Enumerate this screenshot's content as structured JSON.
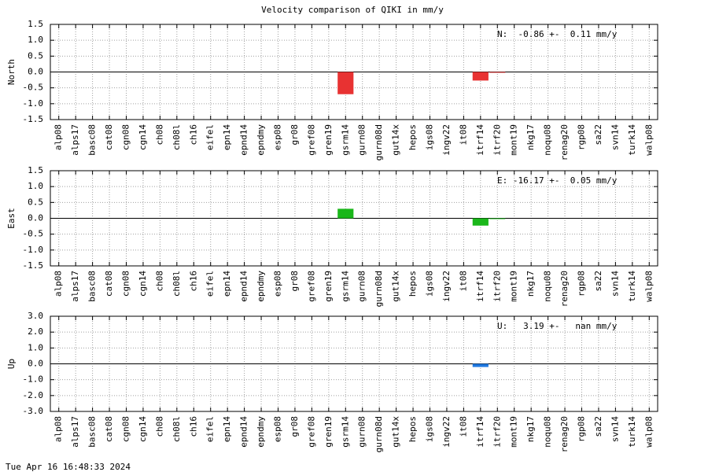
{
  "title": "Velocity comparison of QIKI in mm/y",
  "timestamp": "Tue Apr 16 16:48:33 2024",
  "chart_data": [
    {
      "type": "bar",
      "ylabel": "North",
      "annotation": "N:  -0.86 +-  0.11 mm/y",
      "categories": [
        "alp08",
        "alps17",
        "basc08",
        "cat08",
        "cgn08",
        "cgn14",
        "ch08",
        "ch08l",
        "ch16",
        "eifel",
        "epn14",
        "epnd14",
        "epndmy",
        "esp08",
        "gr08",
        "gref08",
        "gren19",
        "gsrm14",
        "gurn08",
        "gurn08d",
        "gut14x",
        "hepos",
        "igs08",
        "ingv22",
        "it08",
        "itrf14",
        "itrf20",
        "mont19",
        "nkg17",
        "noqu08",
        "renag20",
        "rgp08",
        "sa22",
        "svn14",
        "turk14",
        "walp08"
      ],
      "values": [
        null,
        null,
        null,
        null,
        null,
        null,
        null,
        null,
        null,
        null,
        null,
        null,
        null,
        null,
        null,
        null,
        null,
        -0.7,
        null,
        null,
        null,
        null,
        null,
        null,
        null,
        -0.27,
        -0.02,
        null,
        null,
        null,
        null,
        null,
        null,
        null,
        null,
        null
      ],
      "color": "#e83232",
      "ylim": [
        -1.5,
        1.5
      ],
      "yticks": [
        -1.5,
        {
          "value": -1,
          "label": "-1.0"
        },
        -0.5,
        {
          "value": 0,
          "label": "0.0"
        },
        0.5,
        {
          "value": 1,
          "label": "1.0"
        },
        1.5
      ],
      "grid": true
    },
    {
      "type": "bar",
      "ylabel": "East",
      "annotation": "E: -16.17 +-  0.05 mm/y",
      "categories": [
        "alp08",
        "alps17",
        "basc08",
        "cat08",
        "cgn08",
        "cgn14",
        "ch08",
        "ch08l",
        "ch16",
        "eifel",
        "epn14",
        "epnd14",
        "epndmy",
        "esp08",
        "gr08",
        "gref08",
        "gren19",
        "gsrm14",
        "gurn08",
        "gurn08d",
        "gut14x",
        "hepos",
        "igs08",
        "ingv22",
        "it08",
        "itrf14",
        "itrf20",
        "mont19",
        "nkg17",
        "noqu08",
        "renag20",
        "rgp08",
        "sa22",
        "svn14",
        "turk14",
        "walp08"
      ],
      "values": [
        null,
        null,
        null,
        null,
        null,
        null,
        null,
        null,
        null,
        null,
        null,
        null,
        null,
        null,
        null,
        null,
        null,
        0.3,
        null,
        null,
        null,
        null,
        null,
        null,
        null,
        -0.23,
        -0.02,
        null,
        null,
        null,
        null,
        null,
        null,
        null,
        null,
        null
      ],
      "color": "#1ab71a",
      "ylim": [
        -1.5,
        1.5
      ],
      "yticks": [
        -1.5,
        {
          "value": -1,
          "label": "-1.0"
        },
        -0.5,
        {
          "value": 0,
          "label": "0.0"
        },
        0.5,
        {
          "value": 1,
          "label": "1.0"
        },
        1.5
      ],
      "grid": true
    },
    {
      "type": "bar",
      "ylabel": "Up",
      "annotation": "U:   3.19 +-   nan mm/y",
      "categories": [
        "alp08",
        "alps17",
        "basc08",
        "cat08",
        "cgn08",
        "cgn14",
        "ch08",
        "ch08l",
        "ch16",
        "eifel",
        "epn14",
        "epnd14",
        "epndmy",
        "esp08",
        "gr08",
        "gref08",
        "gren19",
        "gsrm14",
        "gurn08",
        "gurn08d",
        "gut14x",
        "hepos",
        "igs08",
        "ingv22",
        "it08",
        "itrf14",
        "itrf20",
        "mont19",
        "nkg17",
        "noqu08",
        "renag20",
        "rgp08",
        "sa22",
        "svn14",
        "turk14",
        "walp08"
      ],
      "values": [
        null,
        null,
        null,
        null,
        null,
        null,
        null,
        null,
        null,
        null,
        null,
        null,
        null,
        null,
        null,
        null,
        null,
        null,
        null,
        null,
        null,
        null,
        null,
        null,
        null,
        -0.2,
        null,
        null,
        null,
        null,
        null,
        null,
        null,
        null,
        null,
        null
      ],
      "color": "#1f78e0",
      "ylim": [
        -3,
        3
      ],
      "yticks": [
        {
          "value": -3,
          "label": "-3.0"
        },
        {
          "value": -2,
          "label": "-2.0"
        },
        {
          "value": -1,
          "label": "-1.0"
        },
        {
          "value": 0,
          "label": "0.0"
        },
        {
          "value": 1,
          "label": "1.0"
        },
        {
          "value": 2,
          "label": "2.0"
        },
        {
          "value": 3,
          "label": "3.0"
        }
      ],
      "grid": true
    }
  ]
}
